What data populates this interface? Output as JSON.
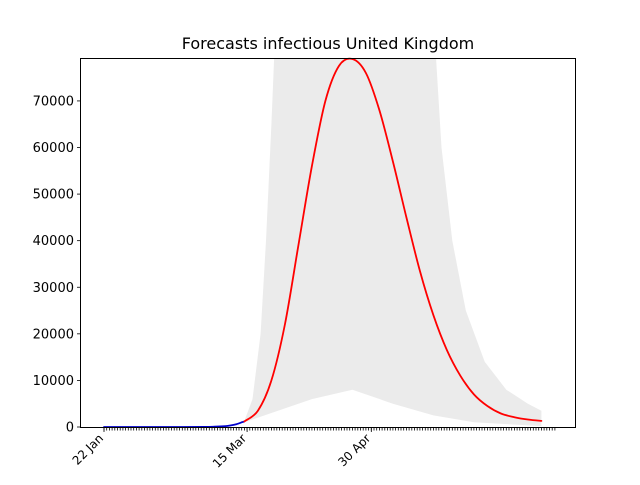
{
  "chart_data": {
    "type": "line",
    "title": "Forecasts infectious United Kingdom",
    "xlabel": "",
    "ylabel": "",
    "x_axis": {
      "start_date": "2020-01-22",
      "end_date": "2020-07-07",
      "tick_labels": [
        {
          "label": "22 Jan",
          "date": "2020-01-22"
        },
        {
          "label": "15 Mar",
          "date": "2020-03-15"
        },
        {
          "label": "30 Apr",
          "date": "2020-04-30"
        }
      ]
    },
    "ylim": [
      0,
      79000
    ],
    "y_ticks": [
      0,
      10000,
      20000,
      30000,
      40000,
      50000,
      60000,
      70000
    ],
    "y_tick_labels": [
      "0",
      "10000",
      "20000",
      "30000",
      "40000",
      "50000",
      "60000",
      "70000"
    ],
    "grid": false,
    "colors": {
      "observed": "#0000cc",
      "forecast": "#ff0000",
      "band": "#ebebeb"
    },
    "series": [
      {
        "role": "observed",
        "points": [
          {
            "x": "2020-01-22",
            "y": 0
          },
          {
            "x": "2020-02-01",
            "y": 0
          },
          {
            "x": "2020-02-10",
            "y": 0
          },
          {
            "x": "2020-02-20",
            "y": 10
          },
          {
            "x": "2020-02-28",
            "y": 30
          },
          {
            "x": "2020-03-03",
            "y": 80
          },
          {
            "x": "2020-03-07",
            "y": 200
          },
          {
            "x": "2020-03-09",
            "y": 350
          },
          {
            "x": "2020-03-11",
            "y": 600
          },
          {
            "x": "2020-03-13",
            "y": 1000
          },
          {
            "x": "2020-03-14",
            "y": 1200
          }
        ]
      },
      {
        "role": "forecast",
        "points": [
          {
            "x": "2020-03-14",
            "y": 1200
          },
          {
            "x": "2020-03-19",
            "y": 3500
          },
          {
            "x": "2020-03-24",
            "y": 10000
          },
          {
            "x": "2020-03-29",
            "y": 22000
          },
          {
            "x": "2020-04-03",
            "y": 39000
          },
          {
            "x": "2020-04-08",
            "y": 56000
          },
          {
            "x": "2020-04-13",
            "y": 70000
          },
          {
            "x": "2020-04-18",
            "y": 77500
          },
          {
            "x": "2020-04-23",
            "y": 79500
          },
          {
            "x": "2020-04-28",
            "y": 76000
          },
          {
            "x": "2020-05-03",
            "y": 68000
          },
          {
            "x": "2020-05-08",
            "y": 57000
          },
          {
            "x": "2020-05-13",
            "y": 45000
          },
          {
            "x": "2020-05-18",
            "y": 33500
          },
          {
            "x": "2020-05-23",
            "y": 24000
          },
          {
            "x": "2020-05-28",
            "y": 16500
          },
          {
            "x": "2020-06-02",
            "y": 11000
          },
          {
            "x": "2020-06-07",
            "y": 7000
          },
          {
            "x": "2020-06-12",
            "y": 4500
          },
          {
            "x": "2020-06-17",
            "y": 2900
          },
          {
            "x": "2020-06-22",
            "y": 2100
          },
          {
            "x": "2020-06-27",
            "y": 1600
          },
          {
            "x": "2020-07-02",
            "y": 1300
          }
        ]
      },
      {
        "role": "forecast-band",
        "lower": [
          {
            "x": "2020-03-14",
            "y": 1000
          },
          {
            "x": "2020-03-24",
            "y": 3000
          },
          {
            "x": "2020-04-08",
            "y": 6000
          },
          {
            "x": "2020-04-23",
            "y": 8000
          },
          {
            "x": "2020-05-08",
            "y": 5000
          },
          {
            "x": "2020-05-23",
            "y": 2500
          },
          {
            "x": "2020-06-07",
            "y": 1000
          },
          {
            "x": "2020-07-02",
            "y": 200
          }
        ],
        "upper": [
          {
            "x": "2020-03-14",
            "y": 1300
          },
          {
            "x": "2020-03-17",
            "y": 6000
          },
          {
            "x": "2020-03-20",
            "y": 20000
          },
          {
            "x": "2020-03-22",
            "y": 40000
          },
          {
            "x": "2020-03-24",
            "y": 65000
          },
          {
            "x": "2020-03-25",
            "y": 79000
          },
          {
            "x": "2020-05-24",
            "y": 79000
          },
          {
            "x": "2020-05-26",
            "y": 60000
          },
          {
            "x": "2020-05-30",
            "y": 40000
          },
          {
            "x": "2020-06-04",
            "y": 25000
          },
          {
            "x": "2020-06-11",
            "y": 14000
          },
          {
            "x": "2020-06-19",
            "y": 8000
          },
          {
            "x": "2020-06-27",
            "y": 5000
          },
          {
            "x": "2020-07-02",
            "y": 3500
          }
        ]
      }
    ]
  }
}
